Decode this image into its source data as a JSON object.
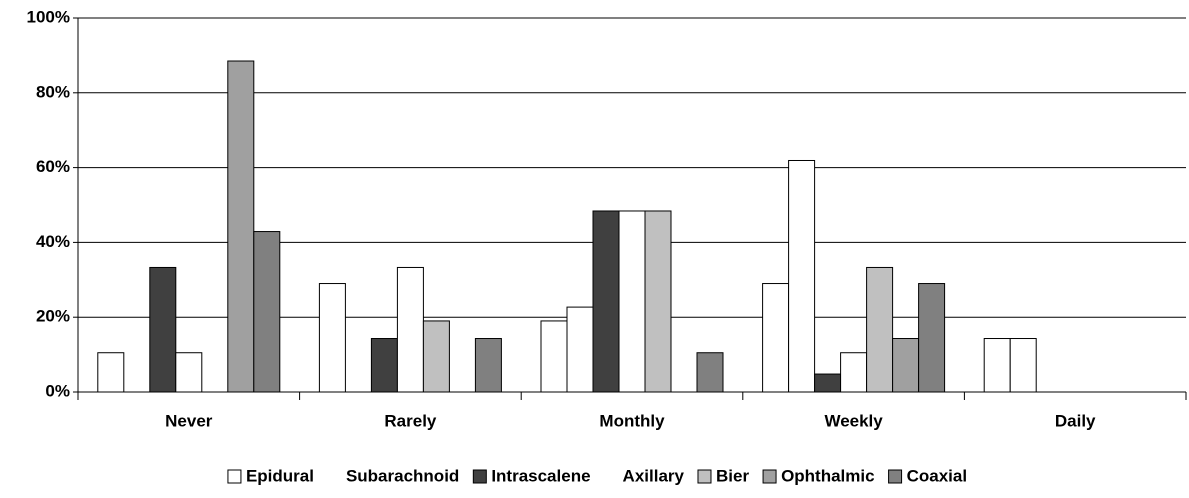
{
  "chart_data": {
    "type": "bar",
    "categories": [
      "Never",
      "Rarely",
      "Monthly",
      "Weekly",
      "Daily"
    ],
    "series": [
      {
        "name": "Epidural",
        "color": "#ffffff",
        "values": [
          10.5,
          29,
          19,
          29,
          14.3
        ]
      },
      {
        "name": "Subarachnoid",
        "color": "#ffffff",
        "values": [
          0,
          0,
          22.7,
          61.9,
          14.3
        ]
      },
      {
        "name": "Intrascalene",
        "color": "#404040",
        "values": [
          33.3,
          14.3,
          48.4,
          4.8,
          0
        ]
      },
      {
        "name": "Axillary",
        "color": "#ffffff",
        "values": [
          10.5,
          33.3,
          48.4,
          10.5,
          0
        ]
      },
      {
        "name": "Bier",
        "color": "#c0c0c0",
        "values": [
          0,
          19,
          48.4,
          33.3,
          0
        ]
      },
      {
        "name": "Ophthalmic",
        "color": "#a0a0a0",
        "values": [
          88.5,
          0,
          0,
          14.3,
          0
        ]
      },
      {
        "name": "Coaxial",
        "color": "#808080",
        "values": [
          42.9,
          14.3,
          10.5,
          29,
          0
        ]
      }
    ],
    "ylim": [
      0,
      100
    ],
    "yticks": [
      {
        "value": 0,
        "label": "0%"
      },
      {
        "value": 20,
        "label": "20%"
      },
      {
        "value": 40,
        "label": "40%"
      },
      {
        "value": 60,
        "label": "60%"
      },
      {
        "value": 80,
        "label": "80%"
      },
      {
        "value": 100,
        "label": "100%"
      }
    ],
    "grid": true,
    "legend": "bottom"
  }
}
